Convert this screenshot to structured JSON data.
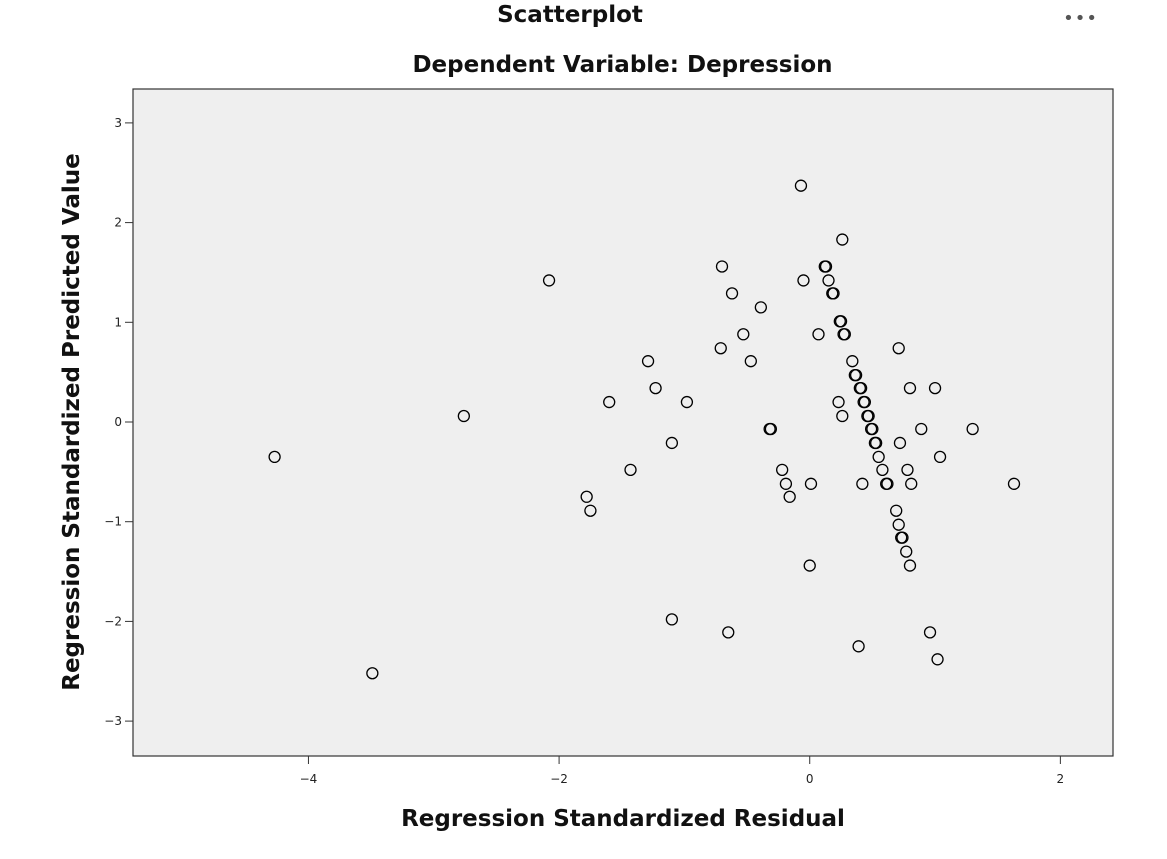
{
  "menu_label": "•••",
  "chart_data": {
    "type": "scatter",
    "title": "Scatterplot",
    "subtitle": "Dependent Variable: Depression",
    "xlabel": "Regression Standardized Residual",
    "ylabel": "Regression Standardized Predicted Value",
    "xlim": [
      -5.4,
      2.42
    ],
    "ylim": [
      -3.35,
      3.34
    ],
    "xticks": [
      -4,
      -2,
      0,
      2
    ],
    "yticks": [
      -3,
      -2,
      -1,
      0,
      1,
      2,
      3
    ],
    "grid": false,
    "colors": {
      "plot_bg": "#efefef",
      "marker_stroke": "#000000",
      "frame": "#333333"
    },
    "points": [
      {
        "x": -4.27,
        "y": -0.35
      },
      {
        "x": -3.49,
        "y": -2.52
      },
      {
        "x": -2.76,
        "y": 0.06
      },
      {
        "x": -2.08,
        "y": 1.42
      },
      {
        "x": -1.78,
        "y": -0.75
      },
      {
        "x": -1.75,
        "y": -0.89
      },
      {
        "x": -1.6,
        "y": 0.2
      },
      {
        "x": -1.43,
        "y": -0.48
      },
      {
        "x": -1.29,
        "y": 0.61
      },
      {
        "x": -1.23,
        "y": 0.34
      },
      {
        "x": -1.1,
        "y": -0.21
      },
      {
        "x": -1.1,
        "y": -1.98
      },
      {
        "x": -0.98,
        "y": 0.2
      },
      {
        "x": -0.7,
        "y": 1.56
      },
      {
        "x": -0.71,
        "y": 0.74
      },
      {
        "x": -0.65,
        "y": -2.11
      },
      {
        "x": -0.62,
        "y": 1.29
      },
      {
        "x": -0.53,
        "y": 0.88
      },
      {
        "x": -0.47,
        "y": 0.61
      },
      {
        "x": -0.39,
        "y": 1.15
      },
      {
        "x": -0.32,
        "y": -0.07
      },
      {
        "x": -0.31,
        "y": -0.07
      },
      {
        "x": -0.22,
        "y": -0.48
      },
      {
        "x": -0.19,
        "y": -0.62
      },
      {
        "x": -0.16,
        "y": -0.75
      },
      {
        "x": -0.07,
        "y": 2.37
      },
      {
        "x": -0.05,
        "y": 1.42
      },
      {
        "x": 0.0,
        "y": -1.44
      },
      {
        "x": 0.01,
        "y": -0.62
      },
      {
        "x": 0.07,
        "y": 0.88
      },
      {
        "x": 0.12,
        "y": 1.56
      },
      {
        "x": 0.13,
        "y": 1.56
      },
      {
        "x": 0.15,
        "y": 1.42
      },
      {
        "x": 0.18,
        "y": 1.29
      },
      {
        "x": 0.19,
        "y": 1.29
      },
      {
        "x": 0.23,
        "y": 0.2
      },
      {
        "x": 0.24,
        "y": 1.01
      },
      {
        "x": 0.25,
        "y": 1.01
      },
      {
        "x": 0.26,
        "y": 1.83
      },
      {
        "x": 0.26,
        "y": 0.06
      },
      {
        "x": 0.27,
        "y": 0.88
      },
      {
        "x": 0.28,
        "y": 0.88
      },
      {
        "x": 0.34,
        "y": 0.61
      },
      {
        "x": 0.36,
        "y": 0.47
      },
      {
        "x": 0.37,
        "y": 0.47
      },
      {
        "x": 0.39,
        "y": -2.25
      },
      {
        "x": 0.4,
        "y": 0.34
      },
      {
        "x": 0.41,
        "y": 0.34
      },
      {
        "x": 0.42,
        "y": -0.62
      },
      {
        "x": 0.43,
        "y": 0.2
      },
      {
        "x": 0.44,
        "y": 0.2
      },
      {
        "x": 0.46,
        "y": 0.06
      },
      {
        "x": 0.47,
        "y": 0.06
      },
      {
        "x": 0.49,
        "y": -0.07
      },
      {
        "x": 0.5,
        "y": -0.07
      },
      {
        "x": 0.52,
        "y": -0.21
      },
      {
        "x": 0.53,
        "y": -0.21
      },
      {
        "x": 0.55,
        "y": -0.35
      },
      {
        "x": 0.58,
        "y": -0.48
      },
      {
        "x": 0.61,
        "y": -0.62
      },
      {
        "x": 0.62,
        "y": -0.62
      },
      {
        "x": 0.69,
        "y": -0.89
      },
      {
        "x": 0.71,
        "y": 0.74
      },
      {
        "x": 0.71,
        "y": -1.03
      },
      {
        "x": 0.72,
        "y": -0.21
      },
      {
        "x": 0.73,
        "y": -1.16
      },
      {
        "x": 0.74,
        "y": -1.16
      },
      {
        "x": 0.77,
        "y": -1.3
      },
      {
        "x": 0.78,
        "y": -0.48
      },
      {
        "x": 0.8,
        "y": -1.44
      },
      {
        "x": 0.8,
        "y": 0.34
      },
      {
        "x": 0.81,
        "y": -0.62
      },
      {
        "x": 0.89,
        "y": -0.07
      },
      {
        "x": 0.96,
        "y": -2.11
      },
      {
        "x": 1.0,
        "y": 0.34
      },
      {
        "x": 1.02,
        "y": -2.38
      },
      {
        "x": 1.04,
        "y": -0.35
      },
      {
        "x": 1.3,
        "y": -0.07
      },
      {
        "x": 1.63,
        "y": -0.62
      }
    ]
  }
}
